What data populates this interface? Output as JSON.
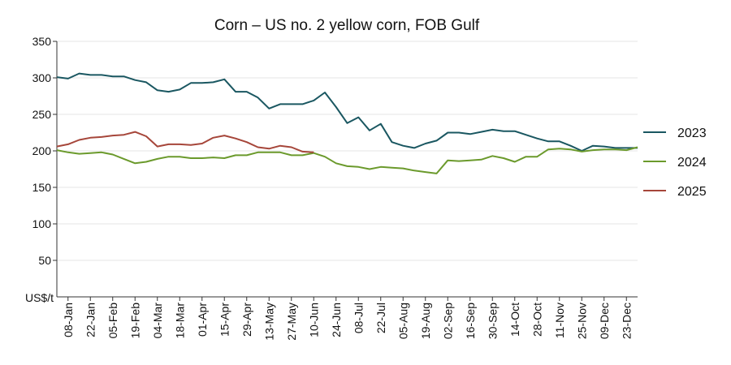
{
  "chart_data": {
    "type": "line",
    "title": "Corn – US no. 2 yellow corn, FOB Gulf",
    "ylabel": "US$/t",
    "xlabel": "",
    "ylim": [
      0,
      350
    ],
    "yticks": [
      50,
      100,
      150,
      200,
      250,
      300,
      350
    ],
    "grid": true,
    "legend_position": "right",
    "x_tick_labels": [
      "08-Jan",
      "22-Jan",
      "05-Feb",
      "19-Feb",
      "04-Mar",
      "18-Mar",
      "01-Apr",
      "15-Apr",
      "29-Apr",
      "13-May",
      "27-May",
      "10-Jun",
      "24-Jun",
      "08-Jul",
      "22-Jul",
      "05-Aug",
      "19-Aug",
      "02-Sep",
      "16-Sep",
      "30-Sep",
      "14-Oct",
      "28-Oct",
      "11-Nov",
      "25-Nov",
      "09-Dec",
      "23-Dec"
    ],
    "x_tick_weeks": [
      1,
      3,
      5,
      7,
      9,
      11,
      13,
      15,
      17,
      19,
      21,
      23,
      25,
      27,
      29,
      31,
      33,
      35,
      37,
      39,
      41,
      43,
      45,
      47,
      49,
      51
    ],
    "x_range": [
      0,
      52
    ],
    "series": [
      {
        "name": "2023",
        "color": "#1a5761",
        "x": [
          0,
          1,
          2,
          3,
          4,
          5,
          6,
          7,
          8,
          9,
          10,
          11,
          12,
          13,
          14,
          15,
          16,
          17,
          18,
          19,
          20,
          21,
          22,
          23,
          24,
          25,
          26,
          27,
          28,
          29,
          30,
          31,
          32,
          33,
          34,
          35,
          36,
          37,
          38,
          39,
          40,
          41,
          42,
          43,
          44,
          45,
          46,
          47,
          48,
          49,
          50,
          51,
          52
        ],
        "values": [
          301,
          299,
          306,
          304,
          304,
          302,
          302,
          297,
          294,
          283,
          281,
          284,
          293,
          293,
          294,
          298,
          281,
          281,
          273,
          258,
          264,
          264,
          264,
          269,
          280,
          260,
          238,
          246,
          228,
          237,
          212,
          207,
          204,
          210,
          214,
          225,
          225,
          223,
          226,
          229,
          227,
          227,
          222,
          217,
          213,
          213,
          207,
          200,
          207,
          206,
          204,
          204,
          204
        ]
      },
      {
        "name": "2024",
        "color": "#6b9a2c",
        "x": [
          0,
          1,
          2,
          3,
          4,
          5,
          6,
          7,
          8,
          9,
          10,
          11,
          12,
          13,
          14,
          15,
          16,
          17,
          18,
          19,
          20,
          21,
          22,
          23,
          24,
          25,
          26,
          27,
          28,
          29,
          30,
          31,
          32,
          33,
          34,
          35,
          36,
          37,
          38,
          39,
          40,
          41,
          42,
          43,
          44,
          45,
          46,
          47,
          48,
          49,
          50,
          51,
          52
        ],
        "values": [
          201,
          198,
          196,
          197,
          198,
          195,
          189,
          183,
          185,
          189,
          192,
          192,
          190,
          190,
          191,
          190,
          194,
          194,
          198,
          198,
          198,
          194,
          194,
          197,
          192,
          183,
          179,
          178,
          175,
          178,
          177,
          176,
          173,
          171,
          169,
          187,
          186,
          187,
          188,
          193,
          190,
          185,
          192,
          192,
          202,
          203,
          202,
          199,
          201,
          202,
          202,
          201,
          205
        ]
      },
      {
        "name": "2025",
        "color": "#a6463a",
        "x": [
          0,
          1,
          2,
          3,
          4,
          5,
          6,
          7,
          8,
          9,
          10,
          11,
          12,
          13,
          14,
          15,
          16,
          17,
          18,
          19,
          20,
          21,
          22,
          23
        ],
        "values": [
          206,
          209,
          215,
          218,
          219,
          221,
          222,
          226,
          220,
          206,
          209,
          209,
          208,
          210,
          218,
          221,
          217,
          212,
          205,
          203,
          207,
          205,
          199,
          198
        ]
      }
    ]
  }
}
